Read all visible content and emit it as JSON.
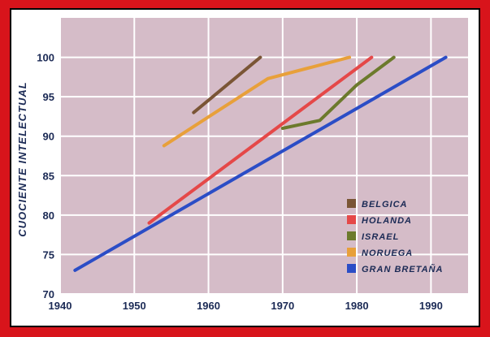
{
  "chart_data": {
    "type": "line",
    "title": "",
    "xlabel": "",
    "ylabel": "CUOCIENTE INTELECTUAL",
    "xlim": [
      1940,
      1995
    ],
    "ylim": [
      70,
      105
    ],
    "x_ticks": [
      "1940",
      "1950",
      "1960",
      "1970",
      "1980",
      "1990"
    ],
    "y_ticks": [
      "70",
      "75",
      "80",
      "85",
      "90",
      "95",
      "100"
    ],
    "grid": true,
    "legend_position": "bottom-right",
    "series": [
      {
        "name": "BELGICA",
        "color": "#7a5535",
        "points": [
          [
            1958,
            93
          ],
          [
            1967,
            100
          ]
        ]
      },
      {
        "name": "HOLANDA",
        "color": "#e54848",
        "points": [
          [
            1952,
            79
          ],
          [
            1982,
            100
          ]
        ]
      },
      {
        "name": "ISRAEL",
        "color": "#6c7a2c",
        "points": [
          [
            1970,
            91
          ],
          [
            1975,
            92
          ],
          [
            1980,
            96.5
          ],
          [
            1985,
            100
          ]
        ]
      },
      {
        "name": "NORUEGA",
        "color": "#e8a03a",
        "points": [
          [
            1954,
            88.8
          ],
          [
            1968,
            97.3
          ],
          [
            1979,
            100
          ]
        ]
      },
      {
        "name": "GRAN BRETAÑA",
        "color": "#2b4dc6",
        "points": [
          [
            1942,
            73
          ],
          [
            1992,
            100
          ]
        ]
      }
    ]
  }
}
